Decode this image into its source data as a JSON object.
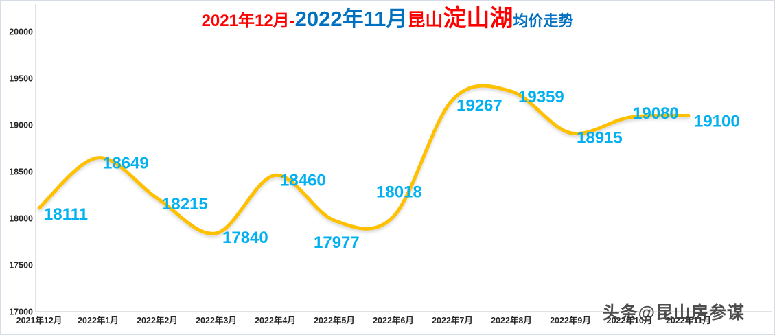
{
  "title": {
    "seg1": "2021年12月-",
    "seg2": "2022年11月",
    "seg3": "昆山",
    "seg4": "淀山湖",
    "seg5": "均价走势",
    "red": "#FF0000",
    "blue": "#0070C0"
  },
  "watermark": "头条@昆山房参谋",
  "chart_data": {
    "type": "line",
    "title": "2021年12月-2022年11月昆山淀山湖均价走势",
    "categories": [
      "2021年12月",
      "2022年1月",
      "2022年2月",
      "2022年3月",
      "2022年4月",
      "2022年5月",
      "2022年6月",
      "2022年7月",
      "2022年8月",
      "2022年9月",
      "2022年10月",
      "2022年11月"
    ],
    "values": [
      18111,
      18649,
      18215,
      17840,
      18460,
      17977,
      18018,
      19267,
      19359,
      18915,
      19080,
      19100
    ],
    "ylim": [
      17000,
      20000
    ],
    "yticks": [
      17000,
      17500,
      18000,
      18500,
      19000,
      19500,
      20000
    ],
    "xlabel": "",
    "ylabel": "",
    "grid": false,
    "legend": false,
    "smooth": true,
    "line_color": "#FFC000",
    "label_color": "#00B0F0",
    "axis_color": "#D9D9D9",
    "tick_label_color": "#262626"
  }
}
